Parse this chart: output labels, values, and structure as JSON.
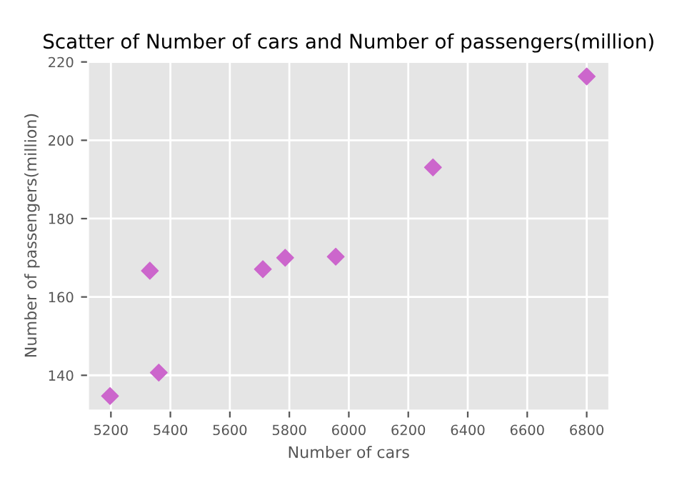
{
  "chart_data": {
    "type": "scatter",
    "title": "Scatter of Number of cars and Number of passengers(million)",
    "xlabel": "Number of cars",
    "ylabel": "Number of passengers(million)",
    "x": [
      5197,
      5331,
      5361,
      5711,
      5786,
      5956,
      6283,
      6800
    ],
    "series": [
      {
        "color": "#cc66cc",
        "values": [
          134.7,
          166.7,
          140.7,
          167.1,
          170.0,
          170.3,
          193.1,
          216.3
        ]
      }
    ],
    "xlim": [
      5123,
      6876
    ],
    "ylim": [
      131,
      220.4
    ],
    "xticks": [
      5200,
      5400,
      5600,
      5800,
      6000,
      6200,
      6400,
      6600,
      6800
    ],
    "yticks": [
      140,
      160,
      180,
      200,
      220
    ],
    "grid": true,
    "marker": "diamond"
  }
}
